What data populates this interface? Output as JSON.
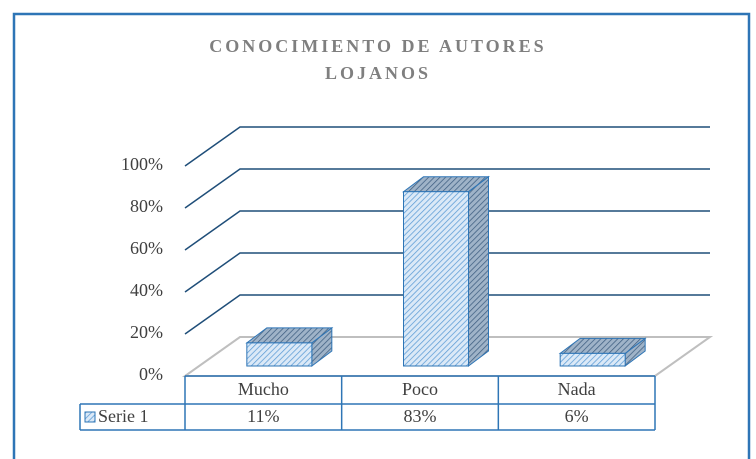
{
  "chart_data": {
    "type": "bar3d",
    "title": [
      "CONOCIMIENTO DE AUTORES",
      "LOJANOS"
    ],
    "categories": [
      "Mucho",
      "Poco",
      "Nada"
    ],
    "series": [
      {
        "name": "Serie 1",
        "color": "#5b9bd5",
        "values": [
          11,
          83,
          6
        ],
        "value_labels": [
          "11%",
          "83%",
          "6%"
        ]
      }
    ],
    "ylim": [
      0,
      100
    ],
    "yticks": [
      {
        "value": 0,
        "label": "0%"
      },
      {
        "value": 20,
        "label": "20%"
      },
      {
        "value": 40,
        "label": "40%"
      },
      {
        "value": 60,
        "label": "60%"
      },
      {
        "value": 80,
        "label": "80%"
      },
      {
        "value": 100,
        "label": "100%"
      }
    ],
    "grid": true
  }
}
